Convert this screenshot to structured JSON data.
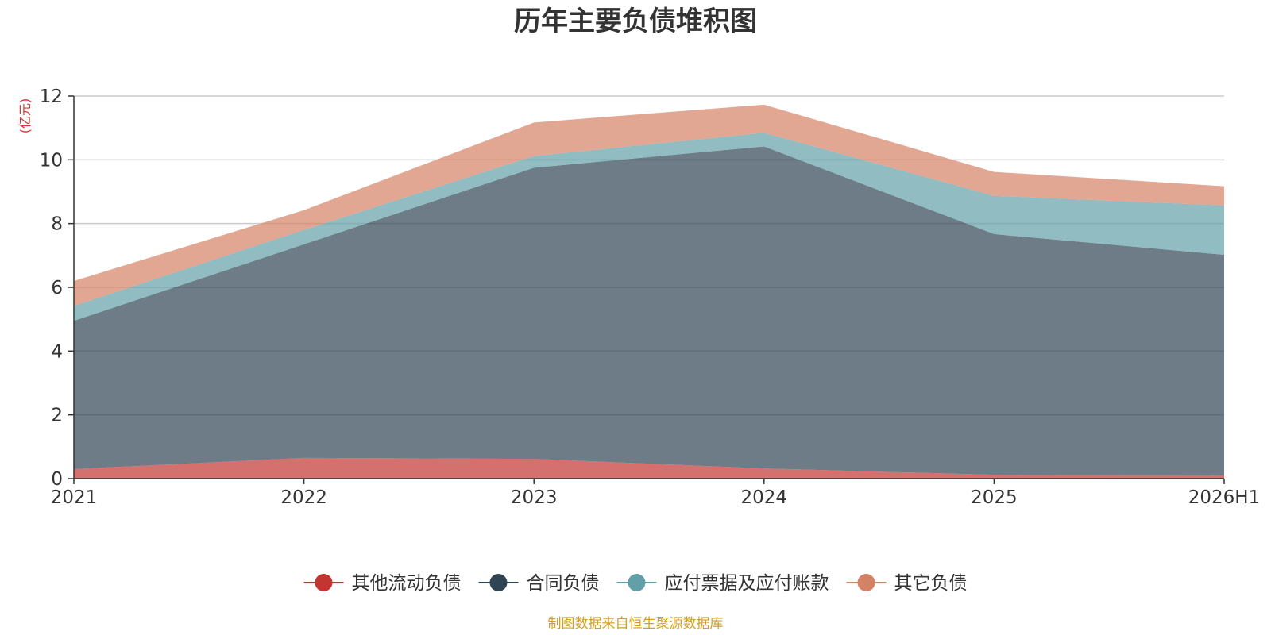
{
  "chart_data": {
    "type": "area",
    "stacked": true,
    "title": "历年主要负债堆积图",
    "unit_label": "(亿元)",
    "x": [
      "2021",
      "2022",
      "2023",
      "2024",
      "2025",
      "2026H1"
    ],
    "ylim": [
      0,
      12
    ],
    "y_ticks": [
      "0",
      "2",
      "4",
      "6",
      "8",
      "10",
      "12"
    ],
    "grid": true,
    "legend_position": "bottom",
    "series": [
      {
        "name": "其他流动负债",
        "color": "#c23531",
        "values": [
          0.3,
          0.65,
          0.62,
          0.32,
          0.12,
          0.1
        ]
      },
      {
        "name": "合同负债",
        "color": "#2f4554",
        "values": [
          4.65,
          6.7,
          9.13,
          10.1,
          7.55,
          6.92
        ]
      },
      {
        "name": "应付票据及应付账款",
        "color": "#61a0a8",
        "values": [
          0.47,
          0.45,
          0.37,
          0.43,
          1.2,
          1.55
        ]
      },
      {
        "name": "其它负债",
        "color": "#d48265",
        "values": [
          0.78,
          0.62,
          1.05,
          0.88,
          0.75,
          0.6
        ]
      }
    ],
    "source": "制图数据来自恒生聚源数据库"
  },
  "colors": {
    "title": "#333333",
    "unit_label": "#e03030",
    "source": "#d4a020",
    "axis": "#333333",
    "grid": "#cccccc"
  }
}
